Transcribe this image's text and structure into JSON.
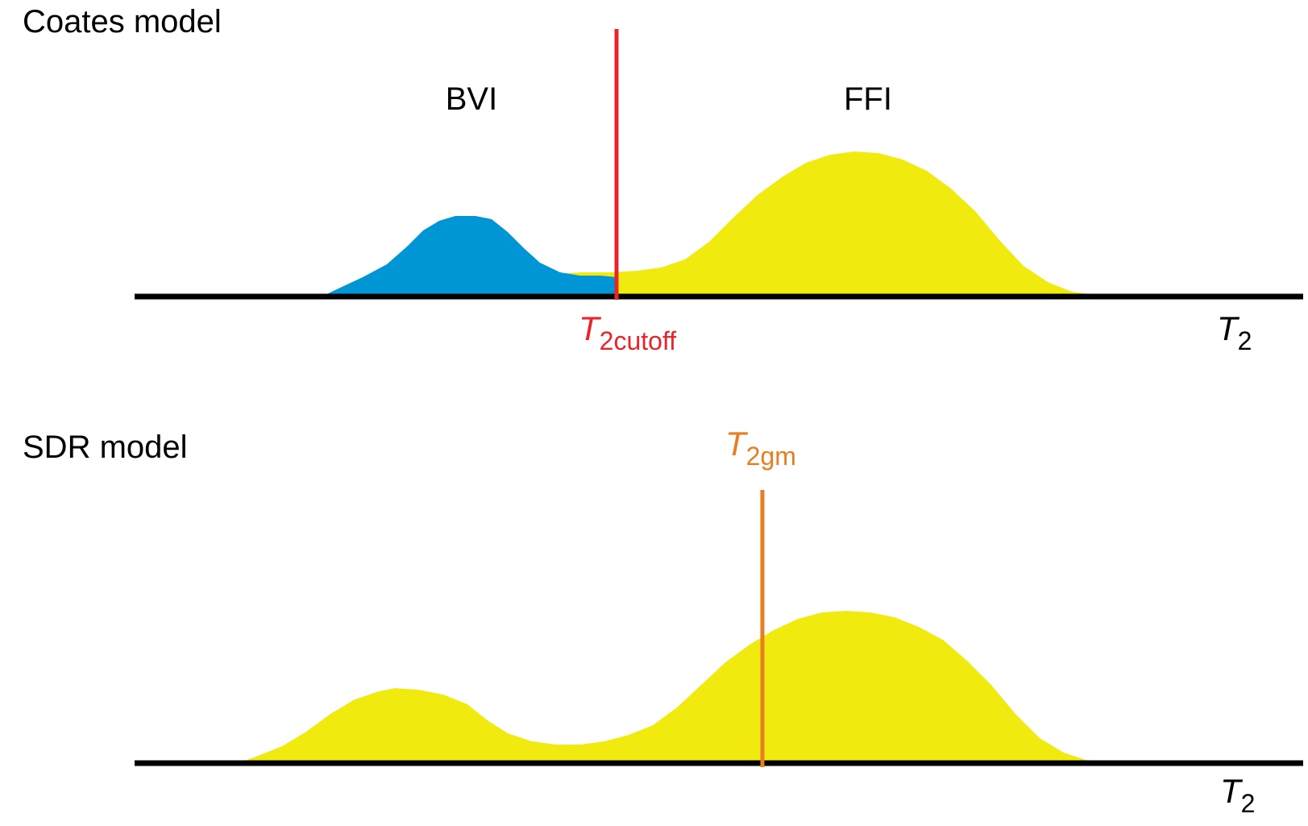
{
  "colors": {
    "bvi": "#0096d6",
    "ffi": "#f0ea0e",
    "cutoff": "#e8262a",
    "gm": "#e67e22",
    "axis": "#000000"
  },
  "panels": [
    {
      "title": "Coates model",
      "x_axis_label": {
        "main": "T",
        "sub": "2"
      },
      "region_labels": {
        "left": "BVI",
        "right": "FFI"
      },
      "marker": {
        "main": "T",
        "sub": "2cutoff",
        "color_key": "cutoff"
      }
    },
    {
      "title": "SDR model",
      "x_axis_label": {
        "main": "T",
        "sub": "2"
      },
      "marker": {
        "main": "T",
        "sub": "2gm",
        "color_key": "gm"
      }
    }
  ]
}
